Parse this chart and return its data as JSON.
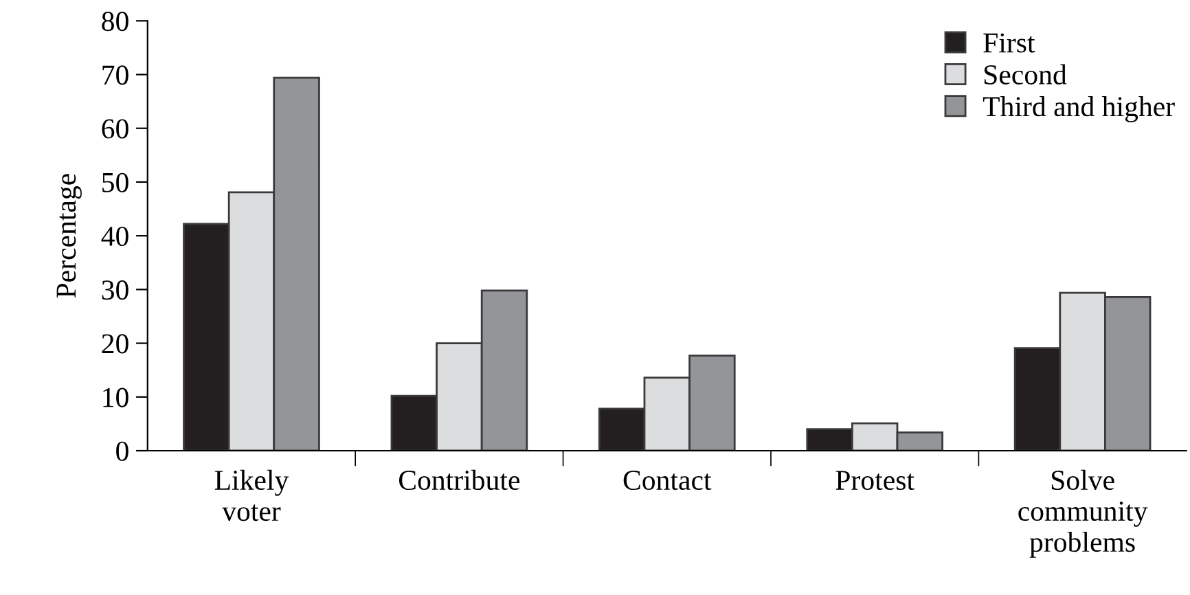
{
  "chart_data": {
    "type": "bar",
    "ylabel": "Percentage",
    "categories": [
      "Likely voter",
      "Contribute",
      "Contact",
      "Protest",
      "Solve community problems"
    ],
    "series": [
      {
        "name": "First",
        "color": "#231f20",
        "values": [
          42.2,
          10.2,
          7.8,
          4.0,
          19.1
        ]
      },
      {
        "name": "Second",
        "color": "#dcdddf",
        "values": [
          48.1,
          20.0,
          13.6,
          5.1,
          29.4
        ]
      },
      {
        "name": "Third and higher",
        "color": "#939598",
        "values": [
          69.4,
          29.8,
          17.7,
          3.4,
          28.6
        ]
      }
    ],
    "ylim": [
      0,
      80
    ],
    "yticks": [
      0,
      10,
      20,
      30,
      40,
      50,
      60,
      70,
      80
    ],
    "grid": false,
    "legend": "top right"
  }
}
